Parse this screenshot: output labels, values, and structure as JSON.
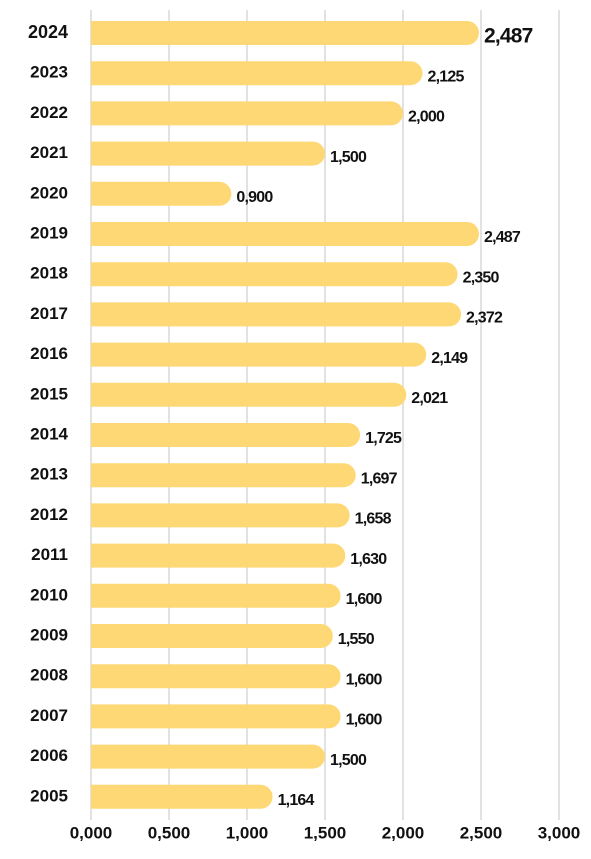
{
  "chart_data": {
    "type": "bar",
    "orientation": "horizontal",
    "categories": [
      "2024",
      "2023",
      "2022",
      "2021",
      "2020",
      "2019",
      "2018",
      "2017",
      "2016",
      "2015",
      "2014",
      "2013",
      "2012",
      "2011",
      "2010",
      "2009",
      "2008",
      "2007",
      "2006",
      "2005"
    ],
    "values": [
      2.487,
      2.125,
      2.0,
      1.5,
      0.9,
      2.487,
      2.35,
      2.372,
      2.149,
      2.021,
      1.725,
      1.697,
      1.658,
      1.63,
      1.6,
      1.55,
      1.6,
      1.6,
      1.5,
      1.164
    ],
    "value_labels": [
      "2,487",
      "2,125",
      "2,000",
      "1,500",
      "0,900",
      "2,487",
      "2,350",
      "2,372",
      "2,149",
      "2,021",
      "1,725",
      "1,697",
      "1,658",
      "1,630",
      "1,600",
      "1,550",
      "1,600",
      "1,600",
      "1,500",
      "1,164"
    ],
    "color": "#fdd874",
    "xlim": [
      0,
      3
    ],
    "xticks": [
      {
        "value": 0,
        "label": "0,000"
      },
      {
        "value": 0.5,
        "label": "0,500"
      },
      {
        "value": 1,
        "label": "1,000"
      },
      {
        "value": 1.5,
        "label": "1,500"
      },
      {
        "value": 2,
        "label": "2,000"
      },
      {
        "value": 2.5,
        "label": "2,500"
      },
      {
        "value": 3,
        "label": "3,000"
      }
    ],
    "grid": true
  }
}
